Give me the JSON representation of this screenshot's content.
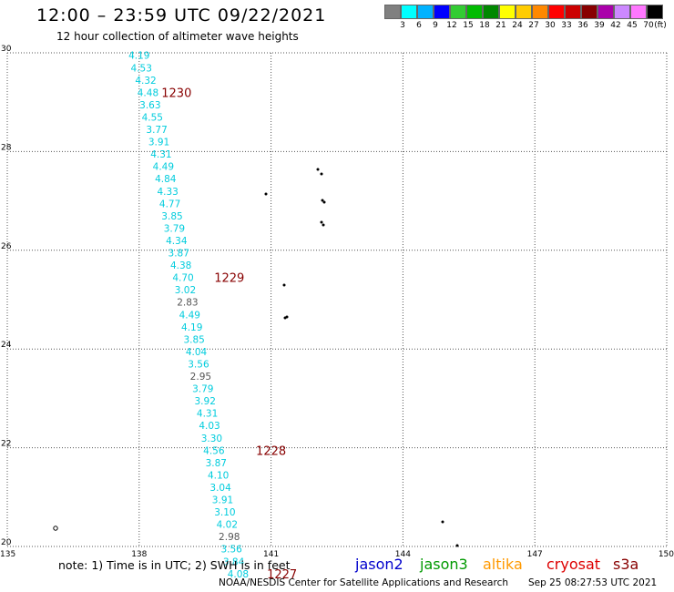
{
  "title": "12:00 – 23:59 UTC 09/22/2021",
  "subtitle": "12 hour collection of altimeter wave heights",
  "legend": {
    "colors": [
      "#808080",
      "#00ffff",
      "#00b2ff",
      "#0000ff",
      "#33cc33",
      "#00bb00",
      "#008800",
      "#ffff00",
      "#ffcc00",
      "#ff8800",
      "#ff0000",
      "#cc0000",
      "#880000",
      "#aa00aa",
      "#cc88ff",
      "#ff77ff",
      "#000000"
    ],
    "labels": [
      "3",
      "6",
      "9",
      "12",
      "15",
      "18",
      "21",
      "24",
      "27",
      "30",
      "33",
      "36",
      "39",
      "42",
      "45",
      "70"
    ],
    "unit": "(ft)"
  },
  "axes": {
    "x_ticks": [
      "135",
      "138",
      "141",
      "144",
      "147",
      "150"
    ],
    "y_ticks": [
      "30",
      "28",
      "26",
      "24",
      "22",
      "20"
    ]
  },
  "chart_data": {
    "type": "scatter",
    "xlim": [
      135,
      150
    ],
    "ylim": [
      20,
      30
    ],
    "grid": true,
    "swh_cyan": "#00ccdd",
    "swh_gray": "#555555",
    "time_color": "#880000",
    "wave_heights": [
      {
        "v": "4.19",
        "lon": 138.0,
        "lat": 29.95,
        "c": "cyan"
      },
      {
        "v": "4.53",
        "lon": 138.05,
        "lat": 29.7,
        "c": "cyan"
      },
      {
        "v": "4.32",
        "lon": 138.15,
        "lat": 29.45,
        "c": "cyan"
      },
      {
        "v": "4.48",
        "lon": 138.2,
        "lat": 29.2,
        "c": "cyan"
      },
      {
        "v": "3.63",
        "lon": 138.25,
        "lat": 28.95,
        "c": "cyan"
      },
      {
        "v": "4.55",
        "lon": 138.3,
        "lat": 28.7,
        "c": "cyan"
      },
      {
        "v": "3.77",
        "lon": 138.4,
        "lat": 28.45,
        "c": "cyan"
      },
      {
        "v": "3.91",
        "lon": 138.45,
        "lat": 28.2,
        "c": "cyan"
      },
      {
        "v": "4.31",
        "lon": 138.5,
        "lat": 27.95,
        "c": "cyan"
      },
      {
        "v": "4.49",
        "lon": 138.55,
        "lat": 27.7,
        "c": "cyan"
      },
      {
        "v": "4.84",
        "lon": 138.6,
        "lat": 27.45,
        "c": "cyan"
      },
      {
        "v": "4.33",
        "lon": 138.65,
        "lat": 27.2,
        "c": "cyan"
      },
      {
        "v": "4.77",
        "lon": 138.7,
        "lat": 26.95,
        "c": "cyan"
      },
      {
        "v": "3.85",
        "lon": 138.75,
        "lat": 26.7,
        "c": "cyan"
      },
      {
        "v": "3.79",
        "lon": 138.8,
        "lat": 26.45,
        "c": "cyan"
      },
      {
        "v": "4.34",
        "lon": 138.85,
        "lat": 26.2,
        "c": "cyan"
      },
      {
        "v": "3.87",
        "lon": 138.9,
        "lat": 25.95,
        "c": "cyan"
      },
      {
        "v": "4.38",
        "lon": 138.95,
        "lat": 25.7,
        "c": "cyan"
      },
      {
        "v": "4.70",
        "lon": 139.0,
        "lat": 25.45,
        "c": "cyan"
      },
      {
        "v": "3.02",
        "lon": 139.05,
        "lat": 25.2,
        "c": "cyan"
      },
      {
        "v": "2.83",
        "lon": 139.1,
        "lat": 24.95,
        "c": "gray"
      },
      {
        "v": "4.49",
        "lon": 139.15,
        "lat": 24.7,
        "c": "cyan"
      },
      {
        "v": "4.19",
        "lon": 139.2,
        "lat": 24.45,
        "c": "cyan"
      },
      {
        "v": "3.85",
        "lon": 139.25,
        "lat": 24.2,
        "c": "cyan"
      },
      {
        "v": "4.04",
        "lon": 139.3,
        "lat": 23.95,
        "c": "cyan"
      },
      {
        "v": "3.56",
        "lon": 139.35,
        "lat": 23.7,
        "c": "cyan"
      },
      {
        "v": "2.95",
        "lon": 139.4,
        "lat": 23.45,
        "c": "gray"
      },
      {
        "v": "3.79",
        "lon": 139.45,
        "lat": 23.2,
        "c": "cyan"
      },
      {
        "v": "3.92",
        "lon": 139.5,
        "lat": 22.95,
        "c": "cyan"
      },
      {
        "v": "4.31",
        "lon": 139.55,
        "lat": 22.7,
        "c": "cyan"
      },
      {
        "v": "4.03",
        "lon": 139.6,
        "lat": 22.45,
        "c": "cyan"
      },
      {
        "v": "3.30",
        "lon": 139.65,
        "lat": 22.2,
        "c": "cyan"
      },
      {
        "v": "4.56",
        "lon": 139.7,
        "lat": 21.95,
        "c": "cyan"
      },
      {
        "v": "3.87",
        "lon": 139.75,
        "lat": 21.7,
        "c": "cyan"
      },
      {
        "v": "4.10",
        "lon": 139.8,
        "lat": 21.45,
        "c": "cyan"
      },
      {
        "v": "3.04",
        "lon": 139.85,
        "lat": 21.2,
        "c": "cyan"
      },
      {
        "v": "3.91",
        "lon": 139.9,
        "lat": 20.95,
        "c": "cyan"
      },
      {
        "v": "3.10",
        "lon": 139.95,
        "lat": 20.7,
        "c": "cyan"
      },
      {
        "v": "4.02",
        "lon": 140.0,
        "lat": 20.45,
        "c": "cyan"
      },
      {
        "v": "2.98",
        "lon": 140.05,
        "lat": 20.2,
        "c": "gray"
      },
      {
        "v": "3.56",
        "lon": 140.1,
        "lat": 19.95,
        "c": "cyan"
      },
      {
        "v": "3.84",
        "lon": 140.15,
        "lat": 19.7,
        "c": "cyan"
      },
      {
        "v": "4.08",
        "lon": 140.25,
        "lat": 19.45,
        "c": "cyan"
      }
    ],
    "time_labels": [
      {
        "t": "1230",
        "lon": 138.85,
        "lat": 29.2
      },
      {
        "t": "1229",
        "lon": 140.05,
        "lat": 25.45
      },
      {
        "t": "1228",
        "lon": 141.0,
        "lat": 21.95
      },
      {
        "t": "1227",
        "lon": 141.25,
        "lat": 19.45
      }
    ]
  },
  "footer": {
    "note": "note: 1) Time is in UTC; 2) SWH is in feet",
    "missions": [
      {
        "name": "jason2",
        "color": "#0000cc"
      },
      {
        "name": "jason3",
        "color": "#009900"
      },
      {
        "name": "altika",
        "color": "#ff9900"
      },
      {
        "name": "cryosat",
        "color": "#dd0000"
      },
      {
        "name": "s3a",
        "color": "#880000"
      }
    ],
    "credit": "NOAA/NESDIS Center for Satellite Applications and Research",
    "timestamp": "Sep 25 08:27:53 UTC 2021"
  }
}
